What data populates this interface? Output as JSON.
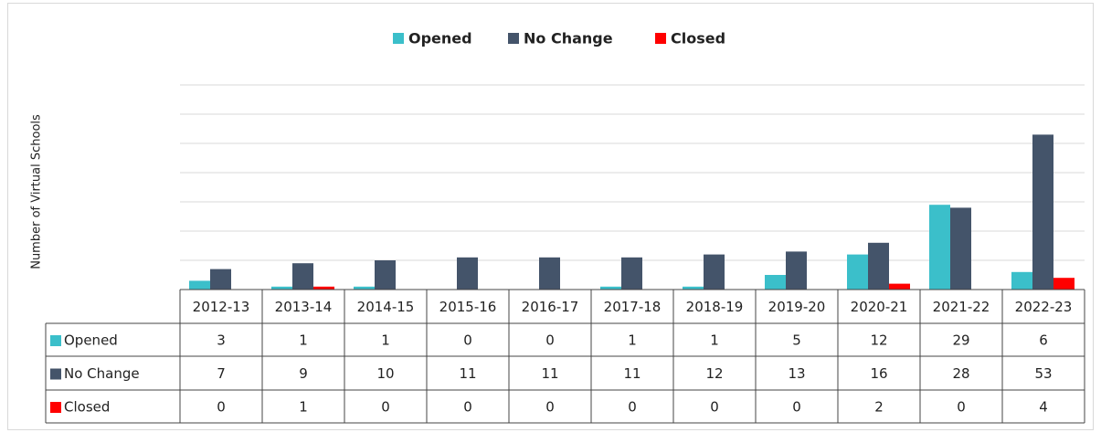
{
  "chart_data": {
    "type": "bar",
    "y_label": "Number of Virtual Schools",
    "categories": [
      "2012-13",
      "2013-14",
      "2014-15",
      "2015-16",
      "2016-17",
      "2017-18",
      "2018-19",
      "2019-20",
      "2020-21",
      "2021-22",
      "2022-23"
    ],
    "series": [
      {
        "name": "Opened",
        "color": "#3bbfca",
        "values": [
          3,
          1,
          1,
          0,
          0,
          1,
          1,
          5,
          12,
          29,
          6
        ]
      },
      {
        "name": "No Change",
        "color": "#44546a",
        "values": [
          7,
          9,
          10,
          11,
          11,
          11,
          12,
          13,
          16,
          28,
          53
        ]
      },
      {
        "name": "Closed",
        "color": "#ff0000",
        "values": [
          0,
          1,
          0,
          0,
          0,
          0,
          0,
          0,
          2,
          0,
          4
        ]
      }
    ],
    "ylim": [
      0,
      70
    ],
    "yticks": [
      0,
      10,
      20,
      30,
      40,
      50,
      60,
      70
    ],
    "grid": true
  }
}
